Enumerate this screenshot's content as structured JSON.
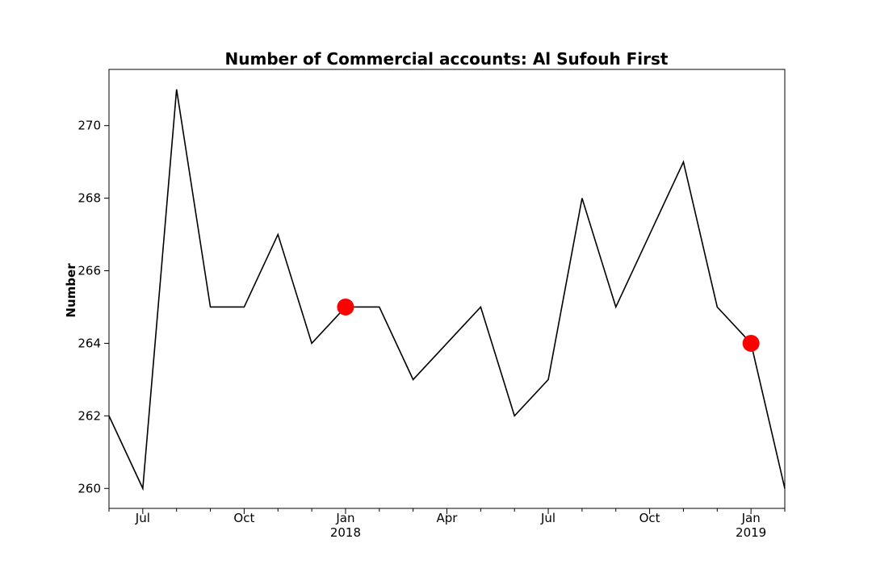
{
  "chart_data": {
    "type": "line",
    "title": "Number of Commercial accounts: Al Sufouh First",
    "xlabel": "",
    "ylabel": "Number",
    "x": [
      "2017-06",
      "2017-07",
      "2017-08",
      "2017-09",
      "2017-10",
      "2017-11",
      "2017-12",
      "2018-01",
      "2018-02",
      "2018-03",
      "2018-04",
      "2018-05",
      "2018-06",
      "2018-07",
      "2018-08",
      "2018-09",
      "2018-10",
      "2018-11",
      "2018-12",
      "2019-01",
      "2019-02"
    ],
    "series": [
      {
        "values": [
          262,
          260,
          271,
          265,
          265,
          267,
          264,
          265,
          265,
          263,
          264,
          265,
          262,
          263,
          268,
          265,
          267,
          269,
          265,
          264,
          260
        ],
        "color": "#000000"
      }
    ],
    "highlight_points": [
      {
        "x": "2018-01",
        "y": 265,
        "color": "#ff0000"
      },
      {
        "x": "2019-01",
        "y": 264,
        "color": "#ff0000"
      }
    ],
    "ylim": [
      259.45,
      271.55
    ],
    "xlim": [
      "2017-06",
      "2019-02"
    ],
    "yticks": [
      260,
      262,
      264,
      266,
      268,
      270
    ],
    "xticks": [
      {
        "x": "2017-07",
        "label": "Jul",
        "sublabel": ""
      },
      {
        "x": "2017-10",
        "label": "Oct",
        "sublabel": ""
      },
      {
        "x": "2018-01",
        "label": "Jan",
        "sublabel": "2018"
      },
      {
        "x": "2018-04",
        "label": "Apr",
        "sublabel": ""
      },
      {
        "x": "2018-07",
        "label": "Jul",
        "sublabel": ""
      },
      {
        "x": "2018-10",
        "label": "Oct",
        "sublabel": ""
      },
      {
        "x": "2019-01",
        "label": "Jan",
        "sublabel": "2019"
      }
    ],
    "grid": false
  }
}
